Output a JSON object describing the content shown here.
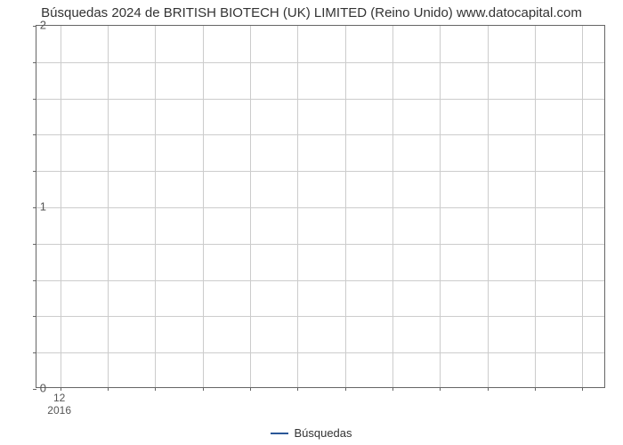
{
  "chart": {
    "type": "line",
    "title": "Búsquedas 2024 de BRITISH BIOTECH (UK) LIMITED (Reino Unido) www.datocapital.com",
    "title_fontsize": 15,
    "title_color": "#333333",
    "background_color": "#ffffff",
    "plot_border_color": "#666666",
    "grid_color": "#cccccc",
    "y": {
      "min": 0,
      "max": 2,
      "major_ticks": [
        0,
        1,
        2
      ],
      "minor_ticks": [
        0.2,
        0.4,
        0.6,
        0.8,
        1.2,
        1.4,
        1.6,
        1.8
      ],
      "label_fontsize": 13,
      "label_color": "#555555"
    },
    "x": {
      "minor_label": "12",
      "major_label": "2016",
      "n_vlines": 12,
      "label_fontsize": 12,
      "label_color": "#555555"
    },
    "legend": {
      "label": "Búsquedas",
      "color": "#2b5797",
      "fontsize": 13
    },
    "series": []
  }
}
